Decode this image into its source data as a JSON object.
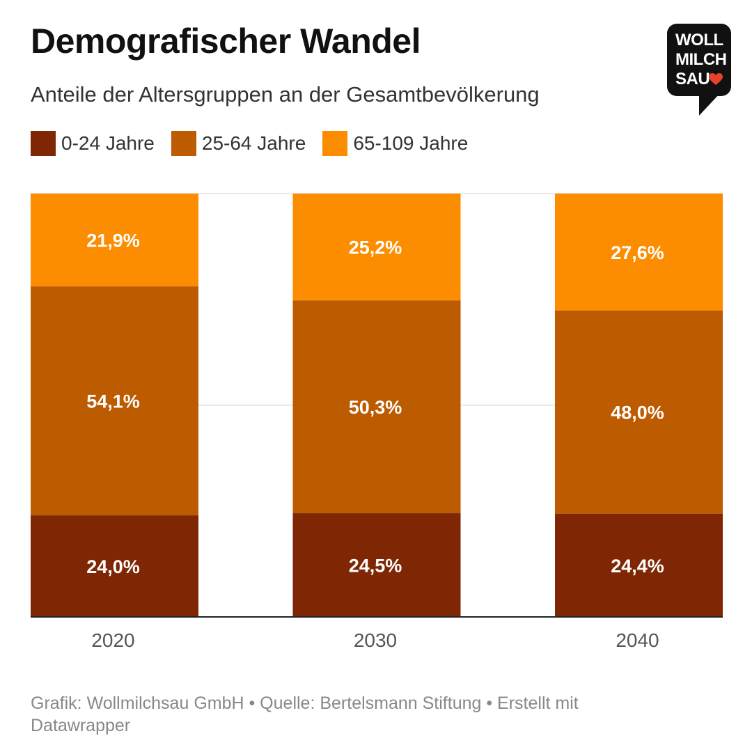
{
  "title": "Demografischer Wandel",
  "subtitle": "Anteile der Altersgruppen an der Gesamtbevölkerung",
  "logo": {
    "lines": [
      "WOLL",
      "MILCH",
      "SAU"
    ],
    "heart_color": "#e8412c"
  },
  "footer": "Grafik: Wollmilchsau GmbH • Quelle: Bertelsmann Stiftung • Erstellt mit Datawrapper",
  "chart_data": {
    "type": "bar",
    "stacked": true,
    "categories": [
      "2020",
      "2030",
      "2040"
    ],
    "series": [
      {
        "name": "0-24 Jahre",
        "color": "#7f2704",
        "values": [
          24.0,
          24.5,
          24.4
        ],
        "labels": [
          "24,0%",
          "24,5%",
          "24,4%"
        ]
      },
      {
        "name": "25-64 Jahre",
        "color": "#bd5b00",
        "values": [
          54.1,
          50.3,
          48.0
        ],
        "labels": [
          "54,1%",
          "50,3%",
          "48,0%"
        ]
      },
      {
        "name": "65-109 Jahre",
        "color": "#fd8d00",
        "values": [
          21.9,
          25.2,
          27.6
        ],
        "labels": [
          "21,9%",
          "25,2%",
          "27,6%"
        ]
      }
    ],
    "ylim": [
      0,
      100
    ],
    "grid": true,
    "legend": "top-left"
  }
}
